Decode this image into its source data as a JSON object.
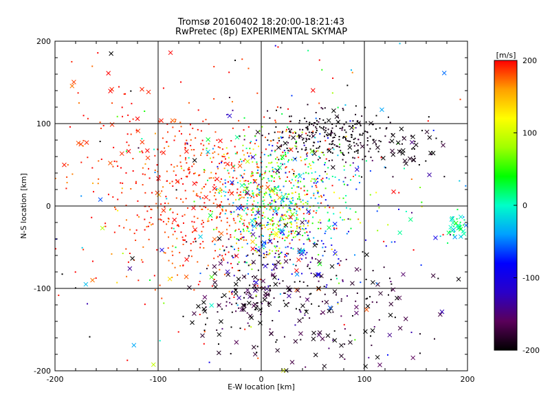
{
  "chart_data": {
    "type": "scatter",
    "title": "Tromsø 20160402 18:20:00-18:21:43",
    "subtitle": "RwPretec (8p) EXPERIMENTAL SKYMAP",
    "xlabel": "E-W location [km]",
    "ylabel": "N-S location [km]",
    "xlim": [
      -200,
      200
    ],
    "ylim": [
      -200,
      200
    ],
    "xticks": [
      "-200",
      "-100",
      "0",
      "100",
      "200"
    ],
    "yticks": [
      "-200",
      "-100",
      "0",
      "100",
      "200"
    ],
    "grid": true,
    "grid_values": [
      -100,
      0,
      100
    ],
    "colorbar": {
      "label": "[m/s]",
      "range": [
        -200,
        200
      ],
      "ticks": [
        "200",
        "100",
        "0",
        "-100",
        "-200"
      ],
      "colormap": [
        "#000000",
        "#5a005a",
        "#2a00c8",
        "#0000ff",
        "#00a0ff",
        "#00ffc8",
        "#00ff00",
        "#a0ff00",
        "#ffff00",
        "#ffa000",
        "#ff0000"
      ]
    },
    "clusters": [
      {
        "cx": -50,
        "cy": 10,
        "sx": 55,
        "sy": 55,
        "v": 190,
        "vs": 15,
        "n": 650,
        "cross_frac": 0.06
      },
      {
        "cx": 10,
        "cy": -5,
        "sx": 25,
        "sy": 30,
        "v": 40,
        "vs": 80,
        "n": 420,
        "cross_frac": 0.05
      },
      {
        "cx": 65,
        "cy": 85,
        "sx": 30,
        "sy": 15,
        "v": -195,
        "vs": 10,
        "n": 260,
        "cross_frac": 0.1
      },
      {
        "cx": 55,
        "cy": -130,
        "sx": 55,
        "sy": 35,
        "v": -185,
        "vs": 25,
        "n": 170,
        "cross_frac": 0.5
      },
      {
        "cx": -10,
        "cy": -100,
        "sx": 30,
        "sy": 30,
        "v": -190,
        "vs": 20,
        "n": 140,
        "cross_frac": 0.4
      },
      {
        "cx": 40,
        "cy": -60,
        "sx": 30,
        "sy": 25,
        "v": -120,
        "vs": 50,
        "n": 110,
        "cross_frac": 0.25
      },
      {
        "cx": 30,
        "cy": 40,
        "sx": 40,
        "sy": 35,
        "v": 10,
        "vs": 70,
        "n": 220,
        "cross_frac": 0.05
      },
      {
        "cx": 190,
        "cy": -25,
        "sx": 8,
        "sy": 8,
        "v": 5,
        "vs": 25,
        "n": 40,
        "cross_frac": 0.6
      },
      {
        "cx": 140,
        "cy": 75,
        "sx": 25,
        "sy": 15,
        "v": -195,
        "vs": 10,
        "n": 50,
        "cross_frac": 0.4
      },
      {
        "cx": 0,
        "cy": 0,
        "sx": 120,
        "sy": 110,
        "v": 0,
        "vs": 160,
        "n": 260,
        "cross_frac": 0.25
      },
      {
        "cx": -140,
        "cy": 100,
        "sx": 25,
        "sy": 30,
        "v": 195,
        "vs": 10,
        "n": 40,
        "cross_frac": 0.5
      }
    ]
  }
}
